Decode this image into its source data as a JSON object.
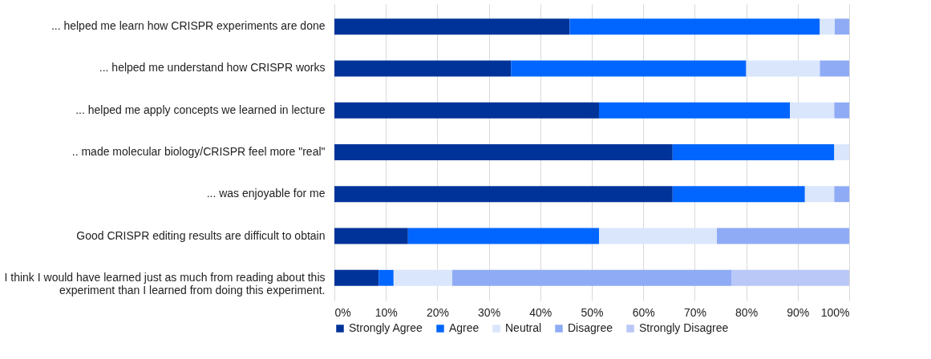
{
  "chart_data": {
    "type": "bar",
    "orientation": "horizontal",
    "stacked": true,
    "categories": [
      "... helped me learn how CRISPR experiments are done",
      "... helped me understand how CRISPR works",
      "... helped me apply concepts we learned in lecture",
      ".. made molecular biology/CRISPR feel more \"real\"",
      "... was enjoyable for me",
      "Good CRISPR editing results are difficult to obtain",
      "I think I would have learned just as much from reading about this\nexperiment than I learned from doing this experiment."
    ],
    "series": [
      {
        "name": "Strongly Agree",
        "color": "#003399",
        "values": [
          45.7,
          34.3,
          51.4,
          65.7,
          65.7,
          14.3,
          8.6
        ]
      },
      {
        "name": "Agree",
        "color": "#0066ff",
        "values": [
          48.6,
          45.7,
          37.1,
          31.4,
          25.7,
          37.1,
          2.9
        ]
      },
      {
        "name": "Neutral",
        "color": "#d9e6fb",
        "values": [
          2.9,
          14.3,
          8.6,
          2.9,
          5.7,
          22.9,
          11.4
        ]
      },
      {
        "name": "Disagree",
        "color": "#8fabf5",
        "values": [
          2.8,
          5.7,
          2.9,
          0,
          2.9,
          25.7,
          54.3
        ]
      },
      {
        "name": "Strongly Disagree",
        "color": "#b9c8f7",
        "values": [
          0,
          0,
          0,
          0,
          0,
          0,
          22.8
        ]
      }
    ],
    "xlim": [
      0,
      100
    ],
    "xticks": [
      {
        "value": 0,
        "label": "0%"
      },
      {
        "value": 10,
        "label": "10%"
      },
      {
        "value": 20,
        "label": "20%"
      },
      {
        "value": 30,
        "label": "30%"
      },
      {
        "value": 40,
        "label": "40%"
      },
      {
        "value": 50,
        "label": "50%"
      },
      {
        "value": 60,
        "label": "60%"
      },
      {
        "value": 70,
        "label": "70%"
      },
      {
        "value": 80,
        "label": "80%"
      },
      {
        "value": 90,
        "label": "90%"
      },
      {
        "value": 100,
        "label": "100%"
      }
    ],
    "grid": "x",
    "legend": "bottom"
  }
}
